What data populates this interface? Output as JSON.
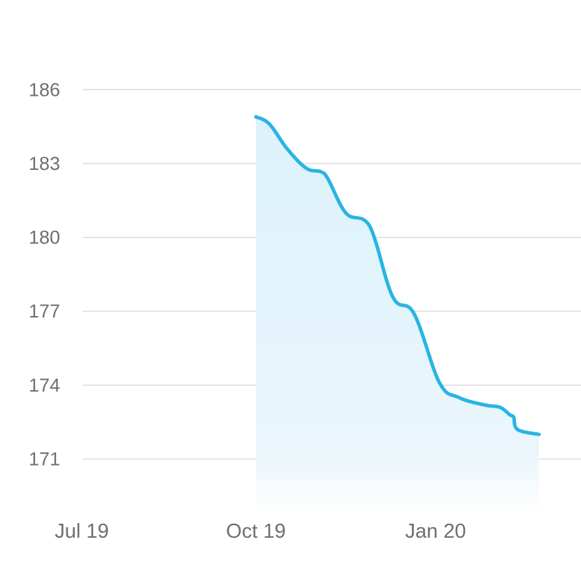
{
  "chart_data": {
    "type": "area",
    "title": "",
    "xlabel": "",
    "ylabel": "",
    "x_ticks": [
      "Jul 19",
      "Oct 19",
      "Jan 20"
    ],
    "y_ticks": [
      186,
      183,
      180,
      177,
      174,
      171
    ],
    "ylim": [
      168.8,
      187.2
    ],
    "grid": true,
    "colors": {
      "line": "#29b5e3",
      "fill": "#dff3fb"
    },
    "series": [
      {
        "points": [
          {
            "x": "2019-10-01",
            "y": 184.9
          },
          {
            "x": "2019-10-08",
            "y": 184.6
          },
          {
            "x": "2019-10-17",
            "y": 183.6
          },
          {
            "x": "2019-10-27",
            "y": 182.8
          },
          {
            "x": "2019-11-05",
            "y": 182.6
          },
          {
            "x": "2019-11-16",
            "y": 181.0
          },
          {
            "x": "2019-11-28",
            "y": 180.5
          },
          {
            "x": "2019-12-10",
            "y": 177.6
          },
          {
            "x": "2019-12-21",
            "y": 176.9
          },
          {
            "x": "2020-01-03",
            "y": 174.1
          },
          {
            "x": "2020-01-13",
            "y": 173.5
          },
          {
            "x": "2020-01-26",
            "y": 173.2
          },
          {
            "x": "2020-02-03",
            "y": 173.1
          },
          {
            "x": "2020-02-08",
            "y": 172.8
          },
          {
            "x": "2020-02-10",
            "y": 172.7
          },
          {
            "x": "2020-02-12",
            "y": 172.2
          },
          {
            "x": "2020-02-23",
            "y": 172.0
          }
        ]
      }
    ]
  }
}
